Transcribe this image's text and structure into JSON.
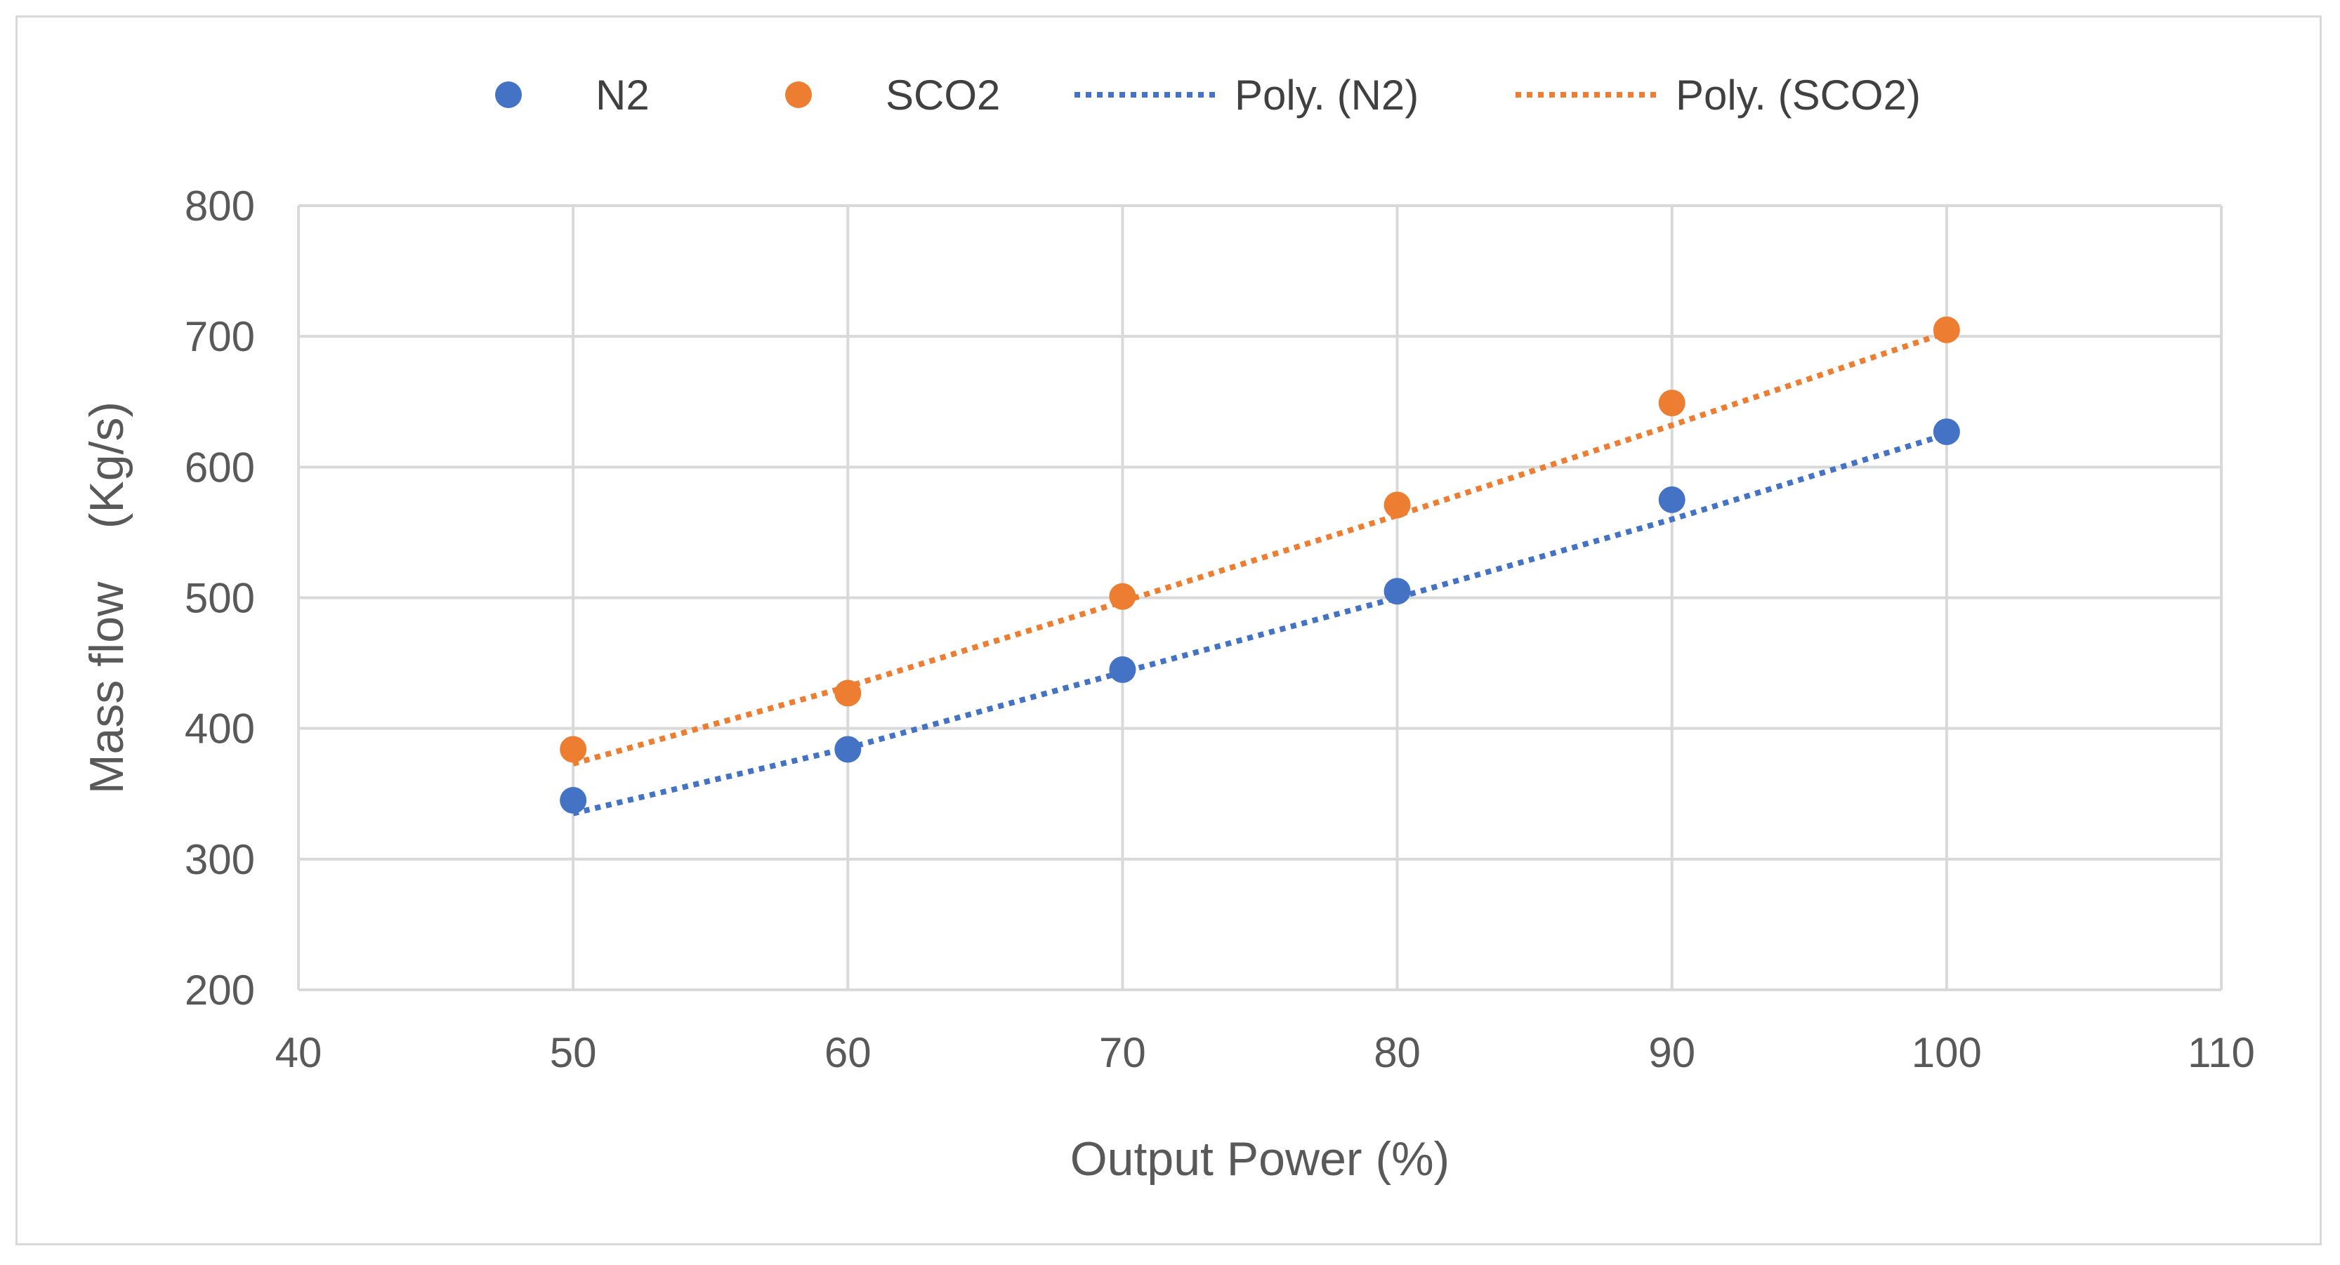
{
  "chart_data": {
    "type": "scatter",
    "title": "",
    "xlabel": "Output Power (%)",
    "ylabel": "Mass flow    (Kg/s)",
    "xlim": [
      40,
      110
    ],
    "ylim": [
      200,
      800
    ],
    "x_ticks": [
      40,
      50,
      60,
      70,
      80,
      90,
      100,
      110
    ],
    "y_ticks": [
      200,
      300,
      400,
      500,
      600,
      700,
      800
    ],
    "x_tick_labels": [
      "40",
      "50",
      "60",
      "70",
      "80",
      "90",
      "100",
      "110"
    ],
    "y_tick_labels": [
      "200",
      "300",
      "400",
      "500",
      "600",
      "700",
      "800"
    ],
    "grid": true,
    "legend_position": "top",
    "series": [
      {
        "name": "N2",
        "kind": "markers",
        "color": "#4472c4",
        "x": [
          50,
          60,
          70,
          80,
          90,
          100
        ],
        "y": [
          345,
          384,
          445,
          505,
          575,
          627
        ]
      },
      {
        "name": "SCO2",
        "kind": "markers",
        "color": "#ed7d31",
        "x": [
          50,
          60,
          70,
          80,
          90,
          100
        ],
        "y": [
          384,
          427,
          501,
          571,
          649,
          705
        ]
      }
    ],
    "trendlines": [
      {
        "name": "Poly. (N2)",
        "kind": "dotted-polynomial",
        "color": "#4472c4",
        "of_series": "N2",
        "x": [
          50,
          60,
          70,
          80,
          90,
          100
        ],
        "y": [
          335,
          385,
          443,
          500,
          560,
          625
        ]
      },
      {
        "name": "Poly. (SCO2)",
        "kind": "dotted-polynomial",
        "color": "#ed7d31",
        "of_series": "SCO2",
        "x": [
          50,
          60,
          70,
          80,
          90,
          100
        ],
        "y": [
          373,
          432,
          497,
          563,
          632,
          703
        ]
      }
    ],
    "legend": [
      "N2",
      "SCO2",
      "Poly. (N2)",
      "Poly. (SCO2)"
    ]
  },
  "colors": {
    "grid": "#d9d9d9",
    "text": "#595959",
    "border": "#d9d9d9"
  }
}
